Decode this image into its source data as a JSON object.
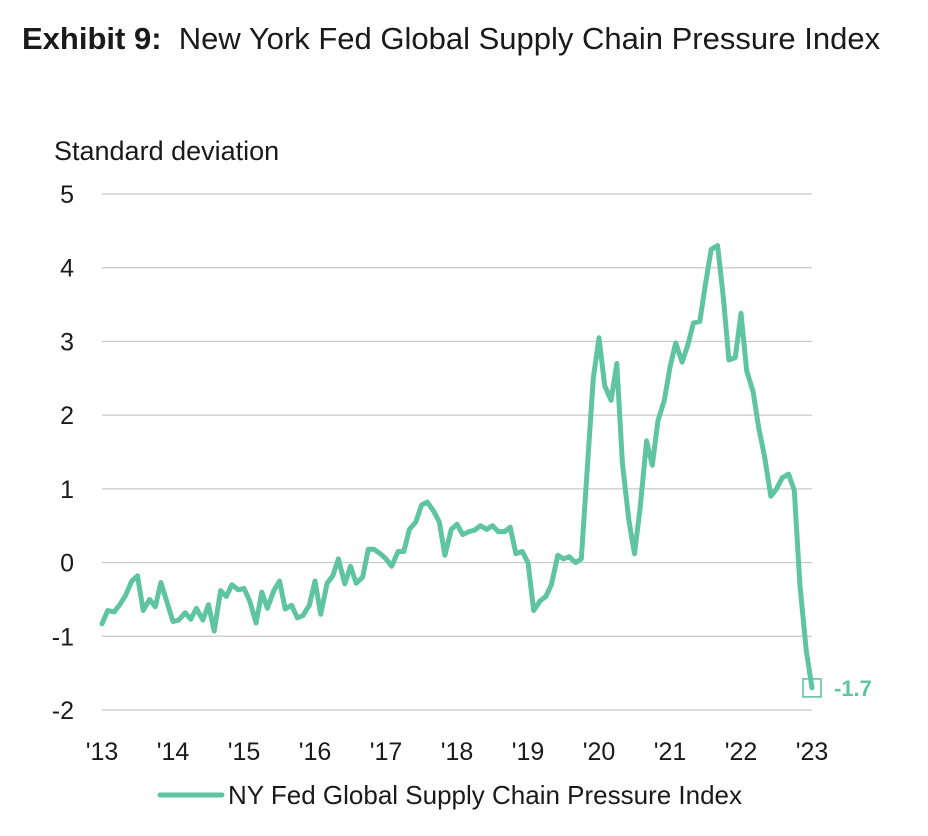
{
  "title": {
    "exhibit": "Exhibit 9:",
    "text": "New York Fed Global Supply Chain Pressure Index"
  },
  "colors": {
    "line": "#5fc4a2",
    "grid": "#c8c8c8"
  },
  "chart_data": {
    "type": "line",
    "title": "New York Fed Global Supply Chain Pressure Index",
    "ylabel": "Standard deviation",
    "xlabel": "",
    "ylim": [
      -2,
      5
    ],
    "yticks": [
      -2,
      -1,
      0,
      1,
      2,
      3,
      4,
      5
    ],
    "xticks": [
      {
        "label": "'13",
        "x": 2013.0
      },
      {
        "label": "'14",
        "x": 2014.0
      },
      {
        "label": "'15",
        "x": 2015.0
      },
      {
        "label": "'16",
        "x": 2016.0
      },
      {
        "label": "'17",
        "x": 2017.0
      },
      {
        "label": "'18",
        "x": 2018.0
      },
      {
        "label": "'19",
        "x": 2019.0
      },
      {
        "label": "'20",
        "x": 2020.0
      },
      {
        "label": "'21",
        "x": 2021.0
      },
      {
        "label": "'22",
        "x": 2022.0
      },
      {
        "label": "'23",
        "x": 2023.0
      }
    ],
    "xlim": [
      2013.0,
      2023.0
    ],
    "grid": true,
    "legend_position": "bottom",
    "annotation": {
      "label": "-1.7",
      "x": 2023.0,
      "y": -1.7
    },
    "series": [
      {
        "name": "NY Fed Global Supply Chain Pressure Index",
        "points": [
          [
            2013.0,
            -0.83
          ],
          [
            2013.08,
            -0.65
          ],
          [
            2013.17,
            -0.67
          ],
          [
            2013.25,
            -0.57
          ],
          [
            2013.33,
            -0.45
          ],
          [
            2013.42,
            -0.25
          ],
          [
            2013.5,
            -0.18
          ],
          [
            2013.58,
            -0.65
          ],
          [
            2013.67,
            -0.5
          ],
          [
            2013.75,
            -0.6
          ],
          [
            2013.83,
            -0.27
          ],
          [
            2013.92,
            -0.55
          ],
          [
            2014.0,
            -0.8
          ],
          [
            2014.08,
            -0.78
          ],
          [
            2014.17,
            -0.68
          ],
          [
            2014.25,
            -0.77
          ],
          [
            2014.33,
            -0.62
          ],
          [
            2014.42,
            -0.78
          ],
          [
            2014.5,
            -0.57
          ],
          [
            2014.58,
            -0.93
          ],
          [
            2014.67,
            -0.38
          ],
          [
            2014.75,
            -0.46
          ],
          [
            2014.83,
            -0.3
          ],
          [
            2014.92,
            -0.37
          ],
          [
            2015.0,
            -0.35
          ],
          [
            2015.08,
            -0.52
          ],
          [
            2015.17,
            -0.82
          ],
          [
            2015.25,
            -0.4
          ],
          [
            2015.33,
            -0.62
          ],
          [
            2015.42,
            -0.38
          ],
          [
            2015.5,
            -0.25
          ],
          [
            2015.58,
            -0.63
          ],
          [
            2015.67,
            -0.58
          ],
          [
            2015.75,
            -0.75
          ],
          [
            2015.83,
            -0.72
          ],
          [
            2015.92,
            -0.58
          ],
          [
            2016.0,
            -0.25
          ],
          [
            2016.08,
            -0.7
          ],
          [
            2016.17,
            -0.28
          ],
          [
            2016.25,
            -0.18
          ],
          [
            2016.33,
            0.05
          ],
          [
            2016.42,
            -0.29
          ],
          [
            2016.5,
            -0.05
          ],
          [
            2016.58,
            -0.28
          ],
          [
            2016.67,
            -0.2
          ],
          [
            2016.75,
            0.18
          ],
          [
            2016.83,
            0.18
          ],
          [
            2016.92,
            0.12
          ],
          [
            2017.0,
            0.05
          ],
          [
            2017.08,
            -0.05
          ],
          [
            2017.17,
            0.15
          ],
          [
            2017.25,
            0.15
          ],
          [
            2017.33,
            0.45
          ],
          [
            2017.42,
            0.55
          ],
          [
            2017.5,
            0.78
          ],
          [
            2017.58,
            0.82
          ],
          [
            2017.67,
            0.7
          ],
          [
            2017.75,
            0.55
          ],
          [
            2017.83,
            0.1
          ],
          [
            2017.92,
            0.45
          ],
          [
            2018.0,
            0.52
          ],
          [
            2018.08,
            0.38
          ],
          [
            2018.17,
            0.42
          ],
          [
            2018.25,
            0.44
          ],
          [
            2018.33,
            0.5
          ],
          [
            2018.42,
            0.45
          ],
          [
            2018.5,
            0.5
          ],
          [
            2018.58,
            0.42
          ],
          [
            2018.67,
            0.42
          ],
          [
            2018.75,
            0.48
          ],
          [
            2018.83,
            0.12
          ],
          [
            2018.92,
            0.15
          ],
          [
            2019.0,
            0.0
          ],
          [
            2019.08,
            -0.65
          ],
          [
            2019.17,
            -0.52
          ],
          [
            2019.25,
            -0.46
          ],
          [
            2019.33,
            -0.3
          ],
          [
            2019.42,
            0.1
          ],
          [
            2019.5,
            0.05
          ],
          [
            2019.58,
            0.08
          ],
          [
            2019.67,
            0.0
          ],
          [
            2019.75,
            0.05
          ],
          [
            2019.83,
            1.2
          ],
          [
            2019.92,
            2.5
          ],
          [
            2020.0,
            3.05
          ],
          [
            2020.08,
            2.4
          ],
          [
            2020.17,
            2.2
          ],
          [
            2020.25,
            2.7
          ],
          [
            2020.33,
            1.35
          ],
          [
            2020.42,
            0.58
          ],
          [
            2020.5,
            0.12
          ],
          [
            2020.58,
            0.75
          ],
          [
            2020.67,
            1.65
          ],
          [
            2020.75,
            1.32
          ],
          [
            2020.83,
            1.92
          ],
          [
            2020.92,
            2.2
          ],
          [
            2021.0,
            2.65
          ],
          [
            2021.08,
            2.98
          ],
          [
            2021.17,
            2.72
          ],
          [
            2021.25,
            2.95
          ],
          [
            2021.33,
            3.25
          ],
          [
            2021.42,
            3.27
          ],
          [
            2021.5,
            3.78
          ],
          [
            2021.58,
            4.25
          ],
          [
            2021.67,
            4.3
          ],
          [
            2021.75,
            3.6
          ],
          [
            2021.83,
            2.75
          ],
          [
            2021.92,
            2.78
          ],
          [
            2022.0,
            3.38
          ],
          [
            2022.08,
            2.6
          ],
          [
            2022.17,
            2.32
          ],
          [
            2022.25,
            1.82
          ],
          [
            2022.33,
            1.45
          ],
          [
            2022.42,
            0.9
          ],
          [
            2022.5,
            1.0
          ],
          [
            2022.58,
            1.15
          ],
          [
            2022.67,
            1.2
          ],
          [
            2022.75,
            0.98
          ],
          [
            2022.83,
            -0.3
          ],
          [
            2022.92,
            -1.2
          ],
          [
            2023.0,
            -1.7
          ]
        ]
      }
    ]
  }
}
